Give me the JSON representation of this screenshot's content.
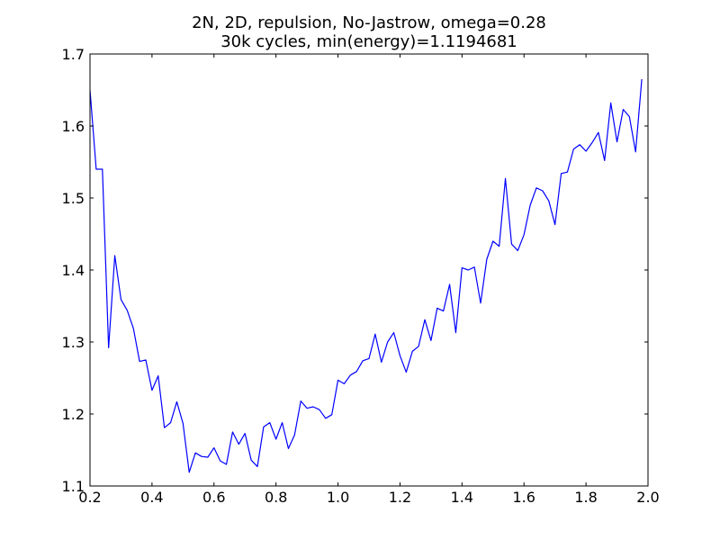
{
  "chart_data": {
    "type": "line",
    "title": "2N, 2D, repulsion, No-Jastrow, omega=0.28",
    "subtitle": "30k cycles, min(energy)=1.1194681",
    "xlabel": "",
    "ylabel": "",
    "xlim": [
      0.2,
      2.0
    ],
    "ylim": [
      1.1,
      1.7
    ],
    "xticks": [
      "0.2",
      "0.4",
      "0.6",
      "0.8",
      "1.0",
      "1.2",
      "1.4",
      "1.6",
      "1.8",
      "2.0"
    ],
    "yticks": [
      "1.1",
      "1.2",
      "1.3",
      "1.4",
      "1.5",
      "1.6",
      "1.7"
    ],
    "grid": false,
    "legend": "none",
    "line_color": "#0000ff",
    "series": [
      {
        "x": [
          0.2,
          0.22,
          0.24,
          0.26,
          0.28,
          0.3,
          0.32,
          0.34,
          0.36,
          0.38,
          0.4,
          0.42,
          0.44,
          0.46,
          0.48,
          0.5,
          0.52,
          0.54,
          0.56,
          0.58,
          0.6,
          0.62,
          0.64,
          0.66,
          0.68,
          0.7,
          0.72,
          0.74,
          0.76,
          0.78,
          0.8,
          0.82,
          0.84,
          0.86,
          0.88,
          0.9,
          0.92,
          0.94,
          0.96,
          0.98,
          1.0,
          1.02,
          1.04,
          1.06,
          1.08,
          1.1,
          1.12,
          1.14,
          1.16,
          1.18,
          1.2,
          1.22,
          1.24,
          1.26,
          1.28,
          1.3,
          1.32,
          1.34,
          1.36,
          1.38,
          1.4,
          1.42,
          1.44,
          1.46,
          1.48,
          1.5,
          1.52,
          1.54,
          1.56,
          1.58,
          1.6,
          1.62,
          1.64,
          1.66,
          1.68,
          1.7,
          1.72,
          1.74,
          1.76,
          1.78,
          1.8,
          1.82,
          1.84,
          1.86,
          1.88,
          1.9,
          1.92,
          1.94,
          1.96,
          1.98
        ],
        "y": [
          1.65,
          1.54,
          1.54,
          1.292,
          1.42,
          1.359,
          1.344,
          1.319,
          1.273,
          1.275,
          1.233,
          1.253,
          1.181,
          1.188,
          1.217,
          1.187,
          1.119,
          1.146,
          1.141,
          1.14,
          1.153,
          1.135,
          1.13,
          1.175,
          1.158,
          1.173,
          1.136,
          1.127,
          1.182,
          1.188,
          1.165,
          1.188,
          1.152,
          1.171,
          1.218,
          1.208,
          1.21,
          1.206,
          1.194,
          1.199,
          1.247,
          1.242,
          1.254,
          1.259,
          1.274,
          1.277,
          1.311,
          1.272,
          1.3,
          1.313,
          1.281,
          1.258,
          1.287,
          1.294,
          1.331,
          1.302,
          1.347,
          1.343,
          1.38,
          1.313,
          1.403,
          1.4,
          1.404,
          1.354,
          1.415,
          1.44,
          1.433,
          1.527,
          1.436,
          1.427,
          1.449,
          1.49,
          1.514,
          1.51,
          1.496,
          1.463,
          1.534,
          1.536,
          1.568,
          1.574,
          1.565,
          1.577,
          1.591,
          1.552,
          1.632,
          1.578,
          1.623,
          1.613,
          1.564,
          1.665
        ]
      }
    ]
  }
}
